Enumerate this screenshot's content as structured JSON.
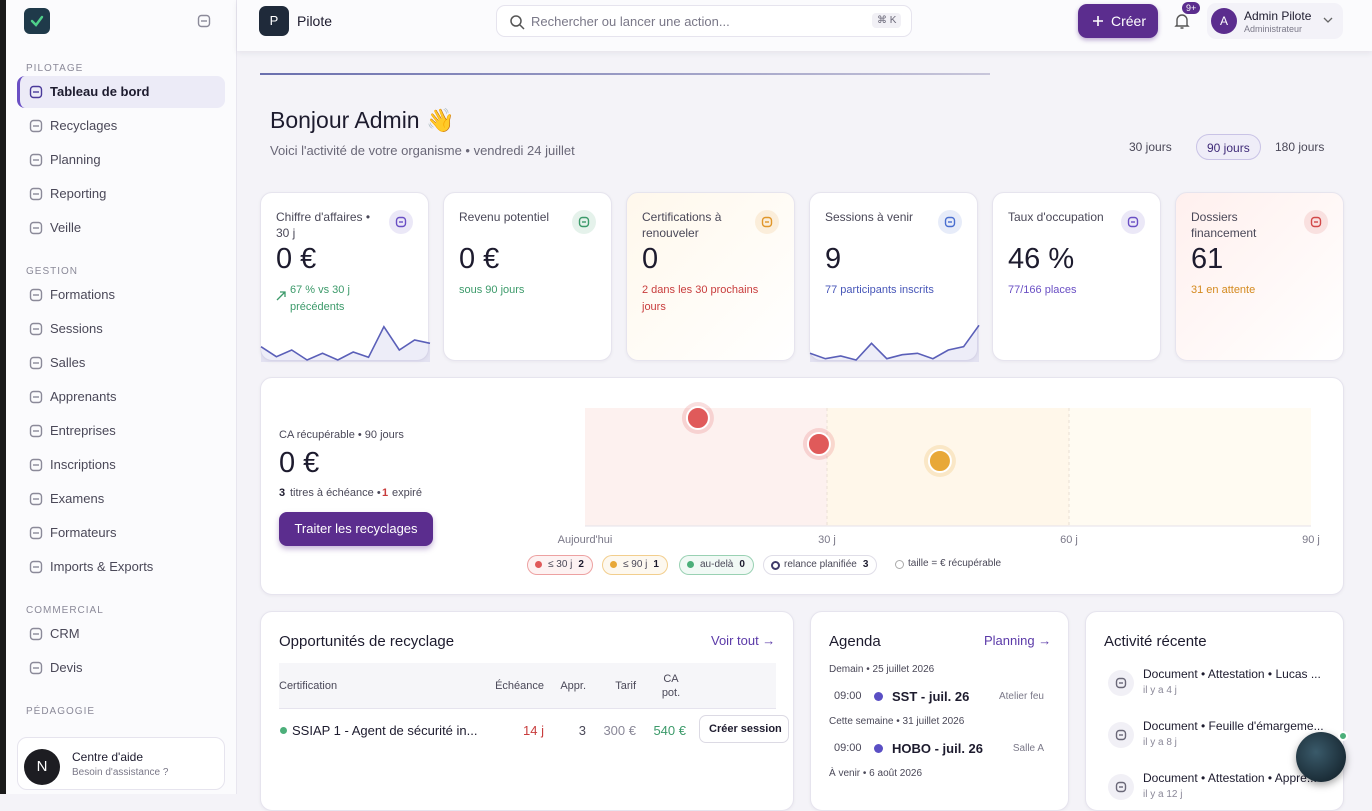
{
  "sidebar": {
    "sections": [
      {
        "title": "PILOTAGE",
        "items": [
          "Tableau de bord",
          "Recyclages",
          "Planning",
          "Reporting",
          "Veille"
        ]
      },
      {
        "title": "GESTION",
        "items": [
          "Formations",
          "Sessions",
          "Salles",
          "Apprenants",
          "Entreprises",
          "Inscriptions",
          "Examens",
          "Formateurs",
          "Imports & Exports"
        ]
      },
      {
        "title": "COMMERCIAL",
        "items": [
          "CRM",
          "Devis"
        ]
      },
      {
        "title": "PÉDAGOGIE",
        "items": []
      }
    ],
    "active_item": [
      0,
      0
    ],
    "help": {
      "avatar": "N",
      "title": "Centre d'aide",
      "subtitle": "Besoin d'assistance ?"
    }
  },
  "topbar": {
    "org_initial": "P",
    "org_name": "Pilote",
    "search_placeholder": "Rechercher ou lancer une action...",
    "shortcut": "⌘ K",
    "create": "Créer",
    "notifications": "9+",
    "user": {
      "initial": "A",
      "name": "Admin Pilote",
      "role": "Administrateur"
    }
  },
  "greeting": {
    "title": "Bonjour Admin 👋",
    "subtitle": "Voici l'activité de votre organisme • vendredi 24 juillet",
    "periods": [
      "30 jours",
      "90 jours",
      "180 jours"
    ],
    "active_period": 1
  },
  "kpis": [
    {
      "label": "Chiffre d'affaires • 30 j",
      "value": "0 €",
      "note": "67 % vs 30 j précédents",
      "tone": "#3c9a6a",
      "icon": "#6a4fc4",
      "spark": [
        2,
        0.5,
        1.5,
        0,
        1,
        0,
        1.2,
        0.4,
        5,
        1.5,
        3,
        2.5
      ]
    },
    {
      "label": "Revenu potentiel",
      "value": "0 €",
      "note": "sous 90 jours",
      "tone": "#3c9a6a",
      "icon": "#3c9a6a"
    },
    {
      "label": "Certifications à renouveler",
      "value": "0",
      "note": "2 dans les 30 prochains jours",
      "tone": "#c83c3c",
      "icon": "#e0962a"
    },
    {
      "label": "Sessions à venir",
      "value": "9",
      "note": "77 participants inscrits",
      "tone": "#4756b8",
      "icon": "#4a6fd0",
      "spark": [
        1,
        0.2,
        0.6,
        0,
        2.5,
        0.2,
        0.8,
        1,
        0.2,
        1.5,
        2,
        5.2
      ]
    },
    {
      "label": "Taux d'occupation",
      "value": "46 %",
      "note": "77/166 places",
      "tone": "#6a4fc4",
      "icon": "#6a4fc4"
    },
    {
      "label": "Dossiers financement",
      "value": "61",
      "note": "31 en attente",
      "tone": "#d48a1e",
      "icon": "#d24848"
    }
  ],
  "spark_ylim": [
    0,
    6
  ],
  "recycling": {
    "label": "CA récupérable • 90 jours",
    "value": "0 €",
    "count": "3",
    "count_text": "titres à échéance •",
    "expired": "1",
    "expired_text": "expiré",
    "button": "Traiter les recyclages",
    "xlim": [
      0,
      90
    ],
    "xticks": [
      {
        "value": 0,
        "label": "Aujourd'hui"
      },
      {
        "value": 30,
        "label": "30 j"
      },
      {
        "value": 60,
        "label": "60 j"
      },
      {
        "value": 90,
        "label": "90 j"
      }
    ],
    "points": [
      {
        "days": 14
      },
      {
        "days": 29
      },
      {
        "days": 44
      }
    ],
    "legend": [
      {
        "label": "≤ 30 j",
        "count": "2",
        "color": "#e05a5a"
      },
      {
        "label": "≤ 90 j",
        "count": "1",
        "color": "#e8a838"
      },
      {
        "label": "au-delà",
        "count": "0",
        "color": "#4caf7a"
      },
      {
        "label": "relance planifiée",
        "count": "3"
      },
      {
        "label": "taille = € récupérable"
      }
    ]
  },
  "opportunities": {
    "title": "Opportunités de recyclage",
    "link": "Voir tout →",
    "columns": [
      "Certification",
      "Échéance",
      "Appr.",
      "Tarif",
      "CA pot."
    ],
    "rows": [
      [
        "SSIAP 1 - Agent de sécurité in...",
        "14 j",
        "3",
        "300 €",
        "540 €"
      ]
    ],
    "action": "Créer session"
  },
  "agenda": {
    "title": "Agenda",
    "link": "Planning →",
    "groups": [
      {
        "heading": "Demain • 25 juillet 2026",
        "events": [
          {
            "time": "09:00",
            "title": "SST - juil. 26",
            "place": "Atelier feu"
          }
        ]
      },
      {
        "heading": "Cette semaine • 31 juillet 2026",
        "events": [
          {
            "time": "09:00",
            "title": "HOBO - juil. 26",
            "place": "Salle A"
          }
        ]
      },
      {
        "heading": "À venir • 6 août 2026",
        "events": []
      }
    ]
  },
  "activity": {
    "title": "Activité récente",
    "items": [
      {
        "title": "Document • Attestation • Lucas ...",
        "time": "il y a 4 j"
      },
      {
        "title": "Document • Feuille d'émargeme...",
        "time": "il y a 8 j"
      },
      {
        "title": "Document • Attestation • Appre...",
        "time": "il y a 12 j"
      }
    ]
  }
}
